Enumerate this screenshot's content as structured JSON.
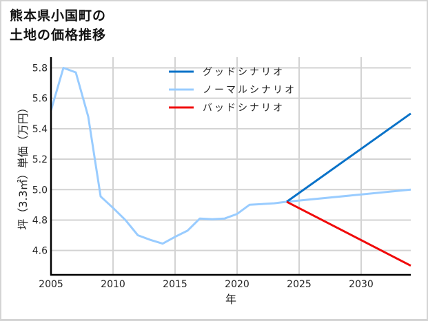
{
  "title_line1": "熊本県小国町の",
  "title_line2": "土地の価格推移",
  "chart_data": {
    "type": "line",
    "title": "熊本県小国町の土地の価格推移",
    "xlabel": "年",
    "ylabel": "坪（3.3㎡）単価（万円）",
    "xlim": [
      2005,
      2034
    ],
    "ylim": [
      4.44,
      5.87
    ],
    "xticks": [
      2005,
      2010,
      2015,
      2020,
      2025,
      2030
    ],
    "yticks": [
      4.6,
      4.8,
      5.0,
      5.2,
      5.4,
      5.6,
      5.8
    ],
    "xtick_labels": [
      "2005",
      "2010",
      "2015",
      "2020",
      "2025",
      "2030"
    ],
    "ytick_labels": [
      "4.6",
      "4.8",
      "5.0",
      "5.2",
      "5.4",
      "5.6",
      "5.8"
    ],
    "grid": true,
    "legend_position": "upper center",
    "series": [
      {
        "name": "グッドシナリオ",
        "color": "#0a72c8",
        "x": [
          2024,
          2034
        ],
        "values": [
          4.92,
          5.5
        ]
      },
      {
        "name": "ノーマルシナリオ",
        "color": "#99ccff",
        "x": [
          2005,
          2006,
          2007,
          2008,
          2009,
          2010,
          2011,
          2012,
          2013,
          2014,
          2015,
          2016,
          2017,
          2018,
          2019,
          2020,
          2021,
          2022,
          2023,
          2024,
          2034
        ],
        "values": [
          5.52,
          5.8,
          5.77,
          5.48,
          4.955,
          4.88,
          4.8,
          4.7,
          4.67,
          4.645,
          4.69,
          4.73,
          4.81,
          4.805,
          4.81,
          4.84,
          4.9,
          4.905,
          4.91,
          4.92,
          5.0
        ]
      },
      {
        "name": "バッドシナリオ",
        "color": "#f00a0a",
        "x": [
          2024,
          2034
        ],
        "values": [
          4.92,
          4.5
        ]
      }
    ]
  }
}
